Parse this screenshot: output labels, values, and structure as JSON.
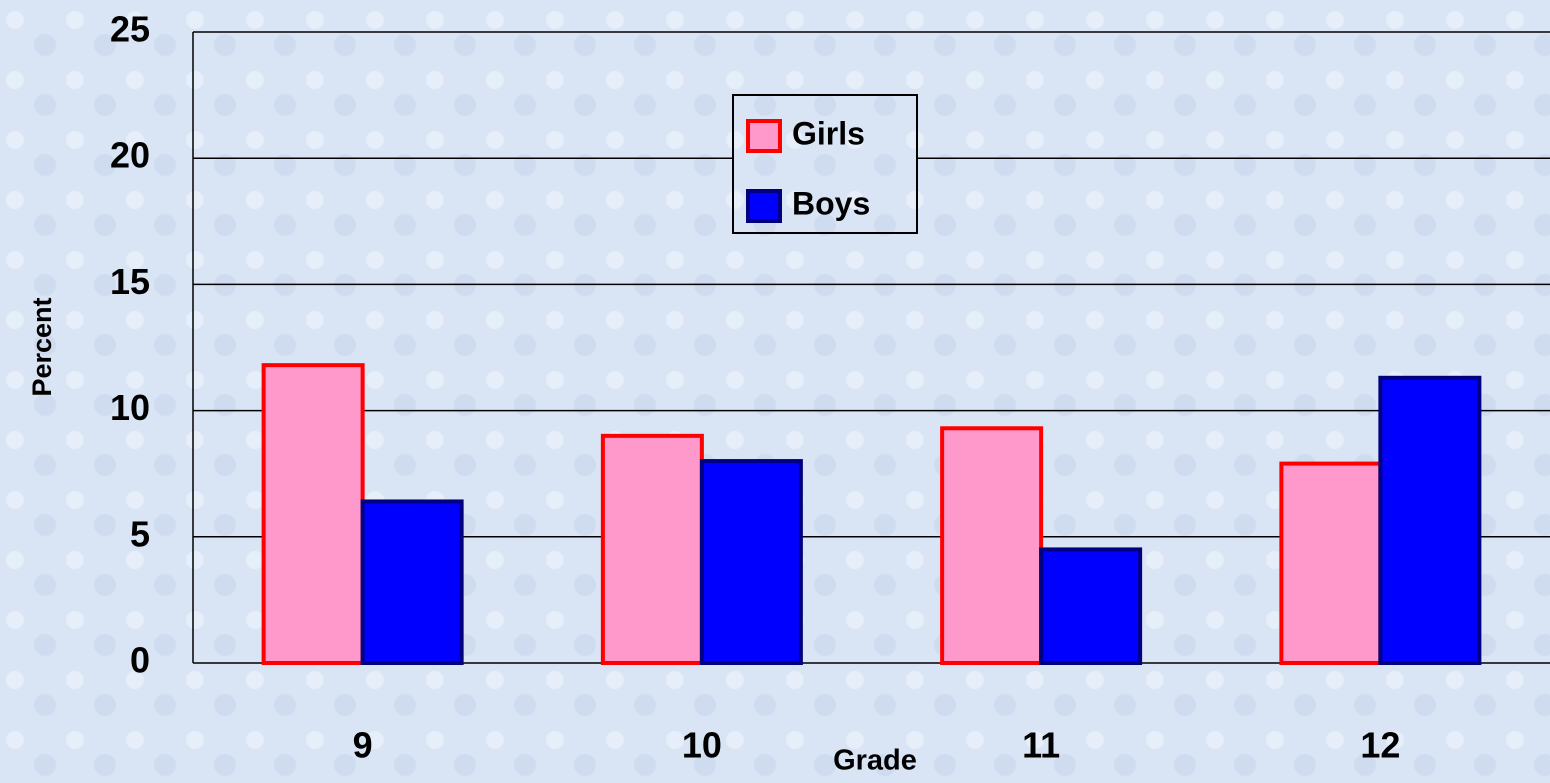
{
  "chart_data": {
    "type": "bar",
    "categories": [
      "9",
      "10",
      "11",
      "12"
    ],
    "series": [
      {
        "name": "Girls",
        "color": "#ff99cc",
        "edge": "#ff0000",
        "values": [
          11.8,
          9.0,
          9.3,
          7.9
        ]
      },
      {
        "name": "Boys",
        "color": "#0000ff",
        "edge": "#000080",
        "values": [
          6.4,
          8.0,
          4.5,
          11.3
        ]
      }
    ],
    "y_label": "Percent",
    "x_label": "Grade",
    "ylim": [
      0,
      25
    ],
    "yticks": [
      0,
      5,
      10,
      15,
      20,
      25
    ],
    "grid": true
  }
}
